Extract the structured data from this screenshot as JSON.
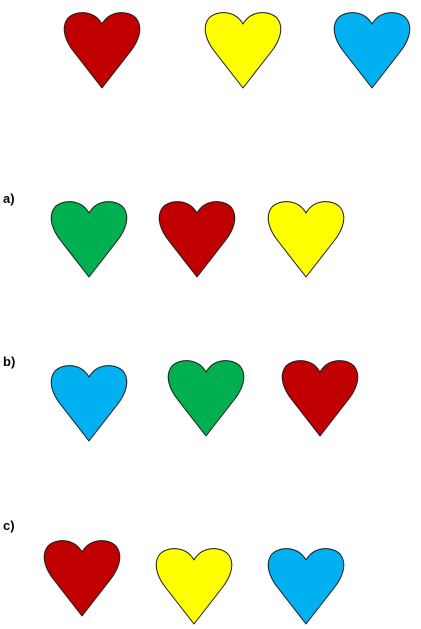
{
  "colors": {
    "red": "#c00000",
    "yellow": "#ffff00",
    "blue": "#00b0f0",
    "green": "#00b050",
    "outline": "#1a1a1a"
  },
  "reference_row": {
    "hearts": [
      "red",
      "yellow",
      "blue"
    ]
  },
  "options": [
    {
      "label": "a)",
      "hearts": [
        "green",
        "red",
        "yellow"
      ]
    },
    {
      "label": "b)",
      "hearts": [
        "blue",
        "green",
        "red"
      ]
    },
    {
      "label": "c)",
      "hearts": [
        "red",
        "yellow",
        "blue"
      ]
    }
  ]
}
